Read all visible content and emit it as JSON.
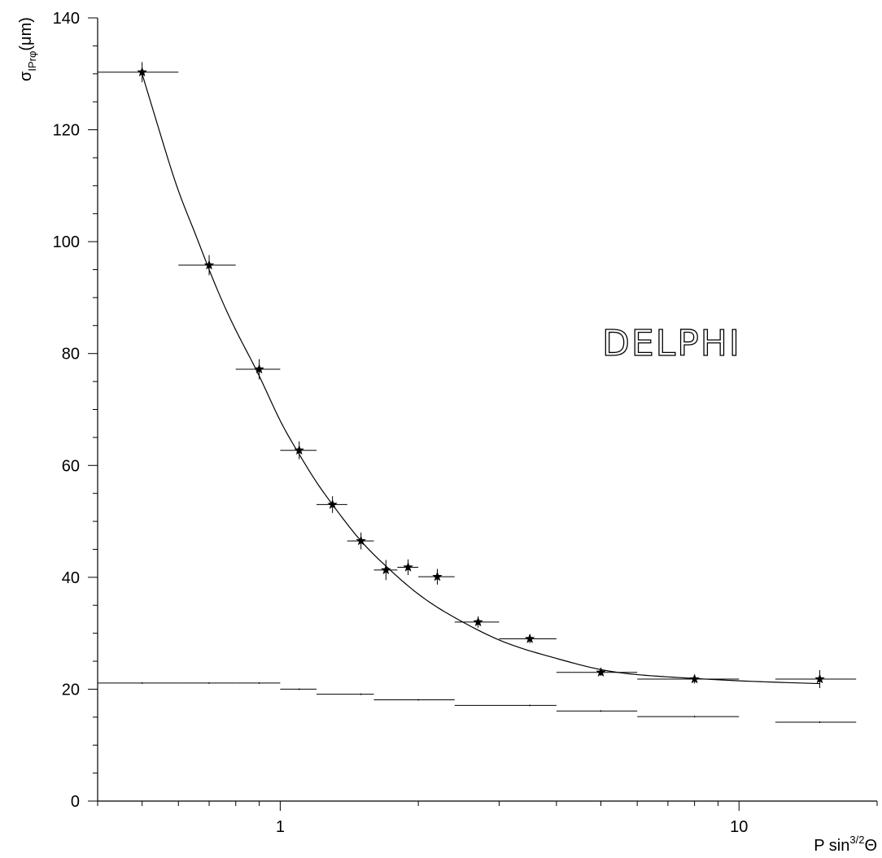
{
  "chart_data": {
    "type": "scatter",
    "xscale": "log",
    "xlim": [
      0.4,
      20
    ],
    "ylim": [
      0,
      140
    ],
    "grid": false,
    "xticks": [
      1,
      10
    ],
    "xtick_labels": [
      "1",
      "10"
    ],
    "yticks": [
      0,
      20,
      40,
      60,
      80,
      100,
      120,
      140
    ],
    "ytick_labels": [
      "0",
      "20",
      "40",
      "60",
      "80",
      "100",
      "120",
      "140"
    ],
    "ylabel": {
      "main": "σ",
      "sub": "IPrφ",
      "unit": "(μm)"
    },
    "xlabel": {
      "main": "P sin",
      "sup": "3/2",
      "tail": "Θ"
    },
    "annotation": "DELPHI",
    "series": [
      {
        "marker": "star",
        "points": [
          {
            "x": 0.5,
            "y": 130.3,
            "xerr": [
              0.4,
              0.6
            ],
            "yerr": 1.8
          },
          {
            "x": 0.7,
            "y": 95.8,
            "xerr": [
              0.6,
              0.8
            ],
            "yerr": 1.8
          },
          {
            "x": 0.9,
            "y": 77.2,
            "xerr": [
              0.8,
              1.0
            ],
            "yerr": 1.8
          },
          {
            "x": 1.1,
            "y": 62.7,
            "xerr": [
              1.0,
              1.2
            ],
            "yerr": 1.6
          },
          {
            "x": 1.3,
            "y": 53.0,
            "xerr": [
              1.2,
              1.4
            ],
            "yerr": 1.5
          },
          {
            "x": 1.5,
            "y": 46.5,
            "xerr": [
              1.4,
              1.6
            ],
            "yerr": 1.5
          },
          {
            "x": 1.7,
            "y": 41.3,
            "xerr": [
              1.6,
              1.8
            ],
            "yerr": 1.8
          },
          {
            "x": 1.9,
            "y": 41.8,
            "xerr": [
              1.8,
              2.0
            ],
            "yerr": 1.4
          },
          {
            "x": 2.2,
            "y": 40.1,
            "xerr": [
              2.0,
              2.4
            ],
            "yerr": 1.4
          },
          {
            "x": 2.7,
            "y": 32.0,
            "xerr": [
              2.4,
              3.0
            ],
            "yerr": 1.0
          },
          {
            "x": 3.5,
            "y": 29.0,
            "xerr": [
              3.0,
              4.0
            ],
            "yerr": 0.8
          },
          {
            "x": 5.0,
            "y": 23.0,
            "xerr": [
              4.0,
              6.0
            ],
            "yerr": 0.6
          },
          {
            "x": 8.0,
            "y": 21.8,
            "xerr": [
              6.0,
              10.0
            ],
            "yerr": 0.8
          },
          {
            "x": 15.0,
            "y": 21.8,
            "xerr": [
              12.0,
              18.0
            ],
            "yerr": 1.6
          }
        ]
      },
      {
        "marker": "tick",
        "points": [
          {
            "x": 0.5,
            "y": 21.1,
            "xerr": [
              0.4,
              0.6
            ]
          },
          {
            "x": 0.7,
            "y": 21.1,
            "xerr": [
              0.6,
              0.8
            ]
          },
          {
            "x": 0.9,
            "y": 21.1,
            "xerr": [
              0.8,
              1.0
            ]
          },
          {
            "x": 1.1,
            "y": 20.0,
            "xerr": [
              1.0,
              1.2
            ]
          },
          {
            "x": 1.5,
            "y": 19.1,
            "xerr": [
              1.2,
              1.6
            ]
          },
          {
            "x": 2.0,
            "y": 18.1,
            "xerr": [
              1.6,
              2.4
            ]
          },
          {
            "x": 3.5,
            "y": 17.1,
            "xerr": [
              2.4,
              4.0
            ]
          },
          {
            "x": 5.0,
            "y": 16.1,
            "xerr": [
              4.0,
              6.0
            ]
          },
          {
            "x": 8.0,
            "y": 15.1,
            "xerr": [
              6.0,
              10.0
            ]
          },
          {
            "x": 15.0,
            "y": 14.1,
            "xerr": [
              12.0,
              18.0
            ]
          }
        ]
      }
    ],
    "fit_curve": {
      "type": "line",
      "x": [
        0.5,
        0.55,
        0.6,
        0.65,
        0.7,
        0.8,
        0.9,
        1.0,
        1.1,
        1.2,
        1.3,
        1.5,
        1.7,
        2.0,
        2.5,
        3.0,
        4.0,
        5.0,
        7.0,
        10.0,
        15.0
      ],
      "y": [
        130.0,
        118.8,
        109.1,
        101.8,
        95.0,
        84.2,
        76.0,
        68.0,
        62.0,
        57.0,
        53.0,
        46.5,
        42.0,
        37.0,
        32.0,
        28.8,
        25.5,
        23.5,
        22.2,
        21.5,
        21.0
      ]
    }
  }
}
